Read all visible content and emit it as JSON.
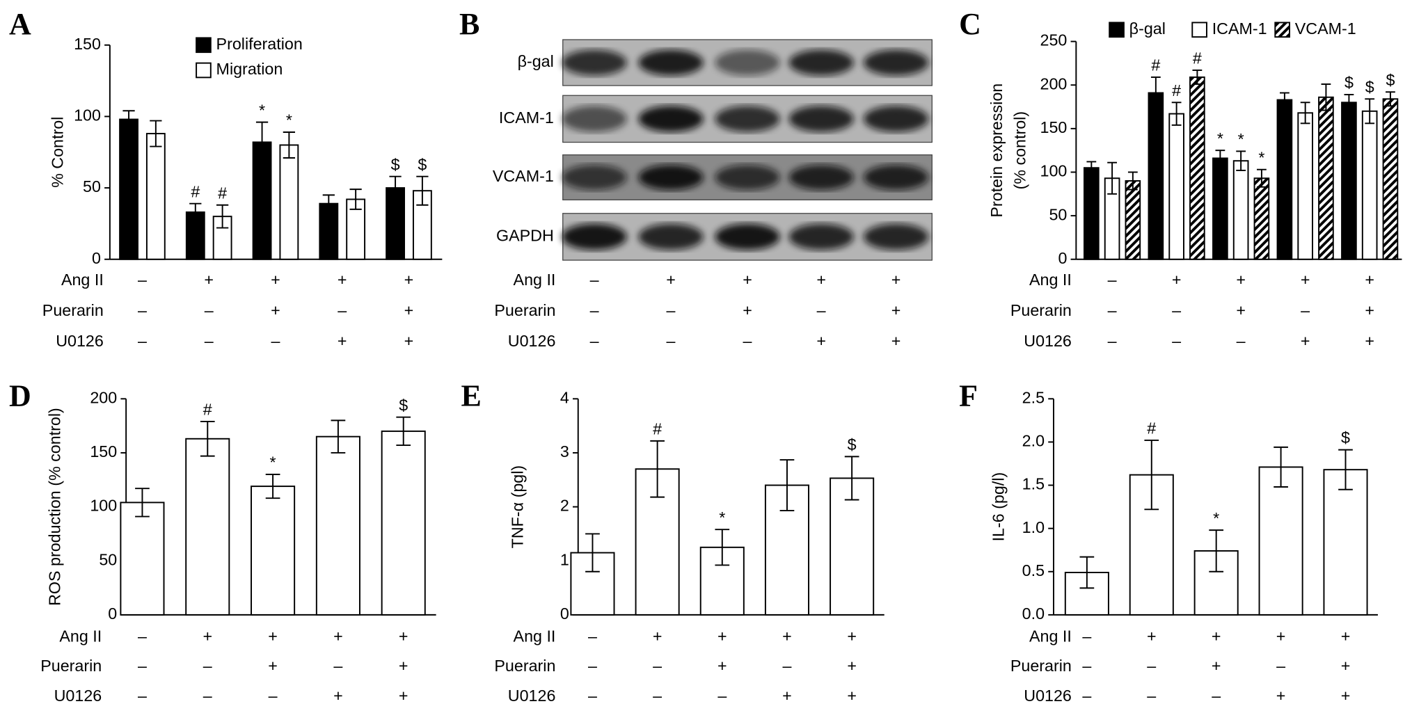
{
  "chart_data": [
    {
      "type": "bar",
      "panel": "A",
      "ylabel": [
        "% Control"
      ],
      "ylim": [
        0,
        150
      ],
      "yticks": [
        0,
        50,
        100,
        150
      ],
      "series": [
        {
          "name": "Proliferation",
          "color": "#000000",
          "values": [
            98,
            33,
            82,
            39,
            50
          ],
          "errors": [
            6,
            6,
            14,
            6,
            8
          ],
          "markers": [
            null,
            "#",
            "*",
            null,
            "$"
          ]
        },
        {
          "name": "Migration",
          "color": "#ffffff",
          "values": [
            88,
            30,
            80,
            42,
            48
          ],
          "errors": [
            9,
            8,
            9,
            7,
            10
          ],
          "markers": [
            null,
            "#",
            "*",
            null,
            "$"
          ]
        }
      ],
      "legend": "top-right",
      "conditions": [
        {
          "name": "Ang II",
          "signs": [
            "–",
            "+",
            "+",
            "+",
            "+"
          ]
        },
        {
          "name": "Puerarin",
          "signs": [
            "–",
            "–",
            "+",
            "–",
            "+"
          ]
        },
        {
          "name": "U0126",
          "signs": [
            "–",
            "–",
            "–",
            "+",
            "+"
          ]
        }
      ]
    },
    {
      "type": "bar",
      "panel": "C",
      "ylabel": [
        "Protein expression",
        "(% control)"
      ],
      "ylim": [
        0,
        250
      ],
      "yticks": [
        0,
        50,
        100,
        150,
        200,
        250
      ],
      "series": [
        {
          "name": "β-gal",
          "color": "#000000",
          "values": [
            105,
            191,
            116,
            183,
            180
          ],
          "errors": [
            7,
            18,
            9,
            8,
            9
          ],
          "markers": [
            null,
            "#",
            "*",
            null,
            "$"
          ]
        },
        {
          "name": "ICAM-1",
          "color": "#ffffff",
          "values": [
            93,
            167,
            113,
            168,
            170
          ],
          "errors": [
            18,
            13,
            11,
            12,
            14
          ],
          "markers": [
            null,
            "#",
            "*",
            null,
            "$"
          ]
        },
        {
          "name": "VCAM-1",
          "color": "#ffffff",
          "pattern": "hatch",
          "values": [
            90,
            209,
            93,
            186,
            184
          ],
          "errors": [
            10,
            8,
            10,
            15,
            8
          ],
          "markers": [
            null,
            "#",
            "*",
            null,
            "$"
          ]
        }
      ],
      "legend": "top",
      "conditions": [
        {
          "name": "Ang II",
          "signs": [
            "–",
            "+",
            "+",
            "+",
            "+"
          ]
        },
        {
          "name": "Puerarin",
          "signs": [
            "–",
            "–",
            "+",
            "–",
            "+"
          ]
        },
        {
          "name": "U0126",
          "signs": [
            "–",
            "–",
            "–",
            "+",
            "+"
          ]
        }
      ]
    },
    {
      "type": "bar",
      "panel": "D",
      "ylabel": [
        "ROS production (% control)"
      ],
      "ylim": [
        0,
        200
      ],
      "yticks": [
        0,
        50,
        100,
        150,
        200
      ],
      "series": [
        {
          "color": "#ffffff",
          "values": [
            104,
            163,
            119,
            165,
            170
          ],
          "errors": [
            13,
            16,
            11,
            15,
            13
          ],
          "markers": [
            null,
            "#",
            "*",
            null,
            "$"
          ]
        }
      ],
      "conditions": [
        {
          "name": "Ang II",
          "signs": [
            "–",
            "+",
            "+",
            "+",
            "+"
          ]
        },
        {
          "name": "Puerarin",
          "signs": [
            "–",
            "–",
            "+",
            "–",
            "+"
          ]
        },
        {
          "name": "U0126",
          "signs": [
            "–",
            "–",
            "–",
            "+",
            "+"
          ]
        }
      ]
    },
    {
      "type": "bar",
      "panel": "E",
      "ylabel": [
        "TNF-α (pgl)"
      ],
      "ylim": [
        0,
        4
      ],
      "yticks": [
        0,
        1,
        2,
        3,
        4
      ],
      "series": [
        {
          "color": "#ffffff",
          "values": [
            1.15,
            2.7,
            1.25,
            2.4,
            2.53
          ],
          "errors": [
            0.35,
            0.52,
            0.33,
            0.47,
            0.4
          ],
          "markers": [
            null,
            "#",
            "*",
            null,
            "$"
          ]
        }
      ],
      "conditions": [
        {
          "name": "Ang II",
          "signs": [
            "–",
            "+",
            "+",
            "+",
            "+"
          ]
        },
        {
          "name": "Puerarin",
          "signs": [
            "–",
            "–",
            "+",
            "–",
            "+"
          ]
        },
        {
          "name": "U0126",
          "signs": [
            "–",
            "–",
            "–",
            "+",
            "+"
          ]
        }
      ]
    },
    {
      "type": "bar",
      "panel": "F",
      "ylabel": [
        "IL-6 (pg/l)"
      ],
      "ylim": [
        0,
        2.5
      ],
      "yticks": [
        {
          "value": 0,
          "label": "0.0"
        },
        0.5,
        {
          "value": 1,
          "label": "1.0"
        },
        1.5,
        {
          "value": 2,
          "label": "2.0"
        },
        2.5
      ],
      "series": [
        {
          "color": "#ffffff",
          "values": [
            0.49,
            1.62,
            0.74,
            1.71,
            1.68
          ],
          "errors": [
            0.18,
            0.4,
            0.24,
            0.23,
            0.23
          ],
          "markers": [
            null,
            "#",
            "*",
            null,
            "$"
          ]
        }
      ],
      "conditions": [
        {
          "name": "Ang II",
          "signs": [
            "–",
            "+",
            "+",
            "+",
            "+"
          ]
        },
        {
          "name": "Puerarin",
          "signs": [
            "–",
            "–",
            "+",
            "–",
            "+"
          ]
        },
        {
          "name": "U0126",
          "signs": [
            "–",
            "–",
            "–",
            "+",
            "+"
          ]
        }
      ]
    }
  ],
  "blot": {
    "panel": "B",
    "bands": [
      "β-gal",
      "ICAM-1",
      "VCAM-1",
      "GAPDH"
    ],
    "conditions": [
      {
        "name": "Ang II",
        "signs": [
          "–",
          "+",
          "+",
          "+",
          "+"
        ]
      },
      {
        "name": "Puerarin",
        "signs": [
          "–",
          "–",
          "+",
          "–",
          "+"
        ]
      },
      {
        "name": "U0126",
        "signs": [
          "–",
          "–",
          "–",
          "+",
          "+"
        ]
      }
    ]
  }
}
